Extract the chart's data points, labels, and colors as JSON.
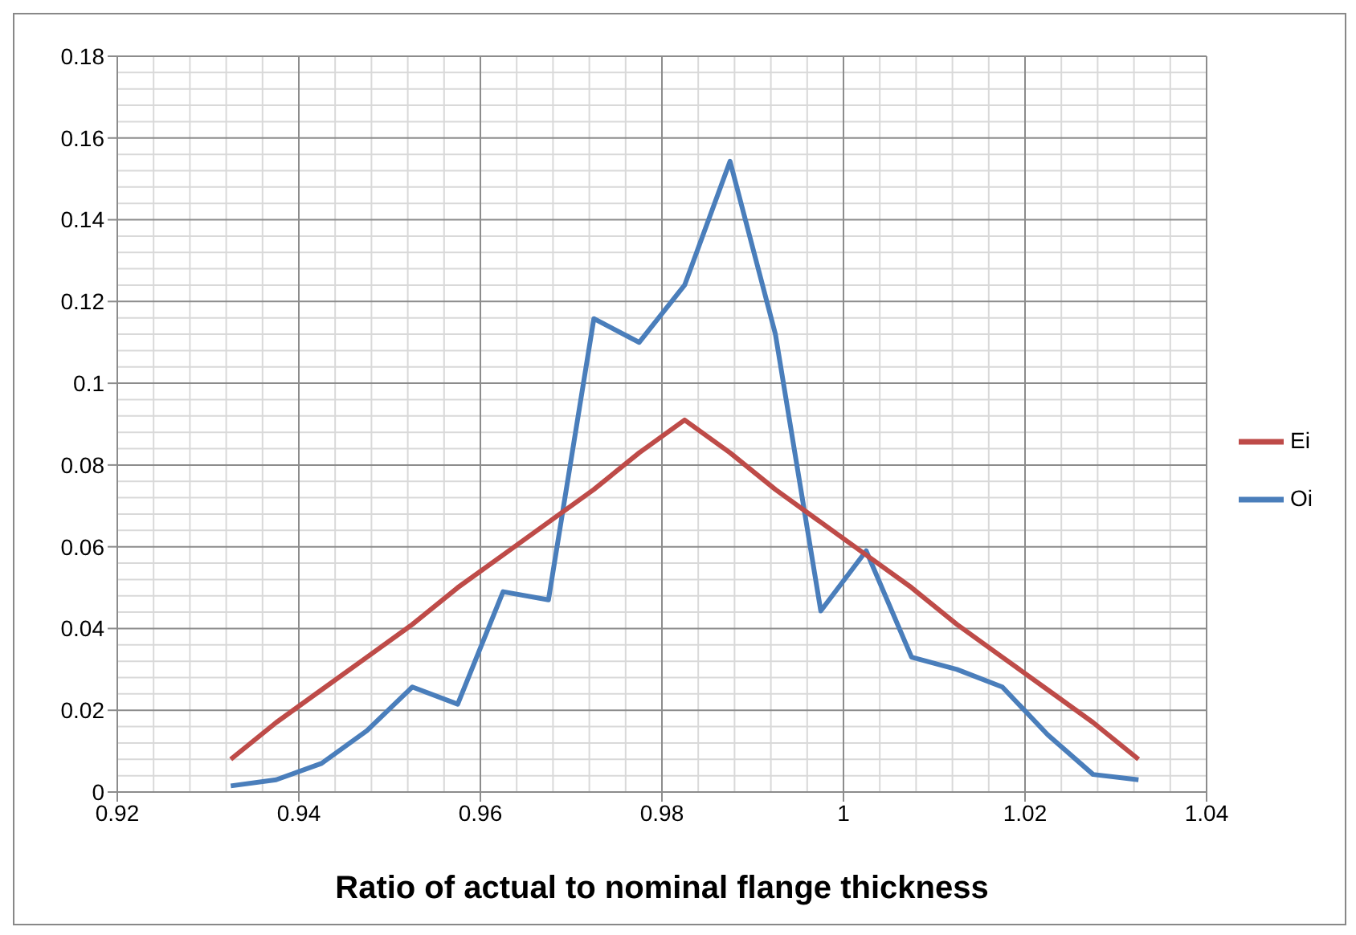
{
  "chart_data": {
    "type": "line",
    "xlabel": "Ratio of actual to nominal flange thickness",
    "x": [
      0.9325,
      0.9375,
      0.9425,
      0.9475,
      0.9525,
      0.9575,
      0.9625,
      0.9675,
      0.9725,
      0.9775,
      0.9825,
      0.9875,
      0.9925,
      0.9975,
      1.0025,
      1.0075,
      1.0125,
      1.0175,
      1.0225,
      1.0275,
      1.0325
    ],
    "series": [
      {
        "name": "Oi",
        "color": "#4a7ebb",
        "values": [
          0.0015,
          0.003,
          0.007,
          0.015,
          0.0257,
          0.0215,
          0.049,
          0.047,
          0.1158,
          0.11,
          0.124,
          0.1543,
          0.112,
          0.0443,
          0.059,
          0.033,
          0.03,
          0.0257,
          0.014,
          0.0043,
          0.003
        ]
      },
      {
        "name": "Ei",
        "color": "#be4b48",
        "values": [
          0.008,
          0.017,
          0.025,
          0.033,
          0.041,
          0.05,
          0.058,
          0.066,
          0.074,
          0.083,
          0.091,
          0.083,
          0.074,
          0.066,
          0.058,
          0.05,
          0.041,
          0.033,
          0.025,
          0.017,
          0.008
        ]
      }
    ],
    "xlim": [
      0.92,
      1.04
    ],
    "xticks": [
      0.92,
      0.94,
      0.96,
      0.98,
      1,
      1.02,
      1.04
    ],
    "ylim": [
      0,
      0.18
    ],
    "yticks": [
      0,
      0.02,
      0.04,
      0.06,
      0.08,
      0.1,
      0.12,
      0.14,
      0.16,
      0.18
    ],
    "grid": true,
    "legend": "right",
    "marker": "none",
    "line_style": "solid"
  }
}
